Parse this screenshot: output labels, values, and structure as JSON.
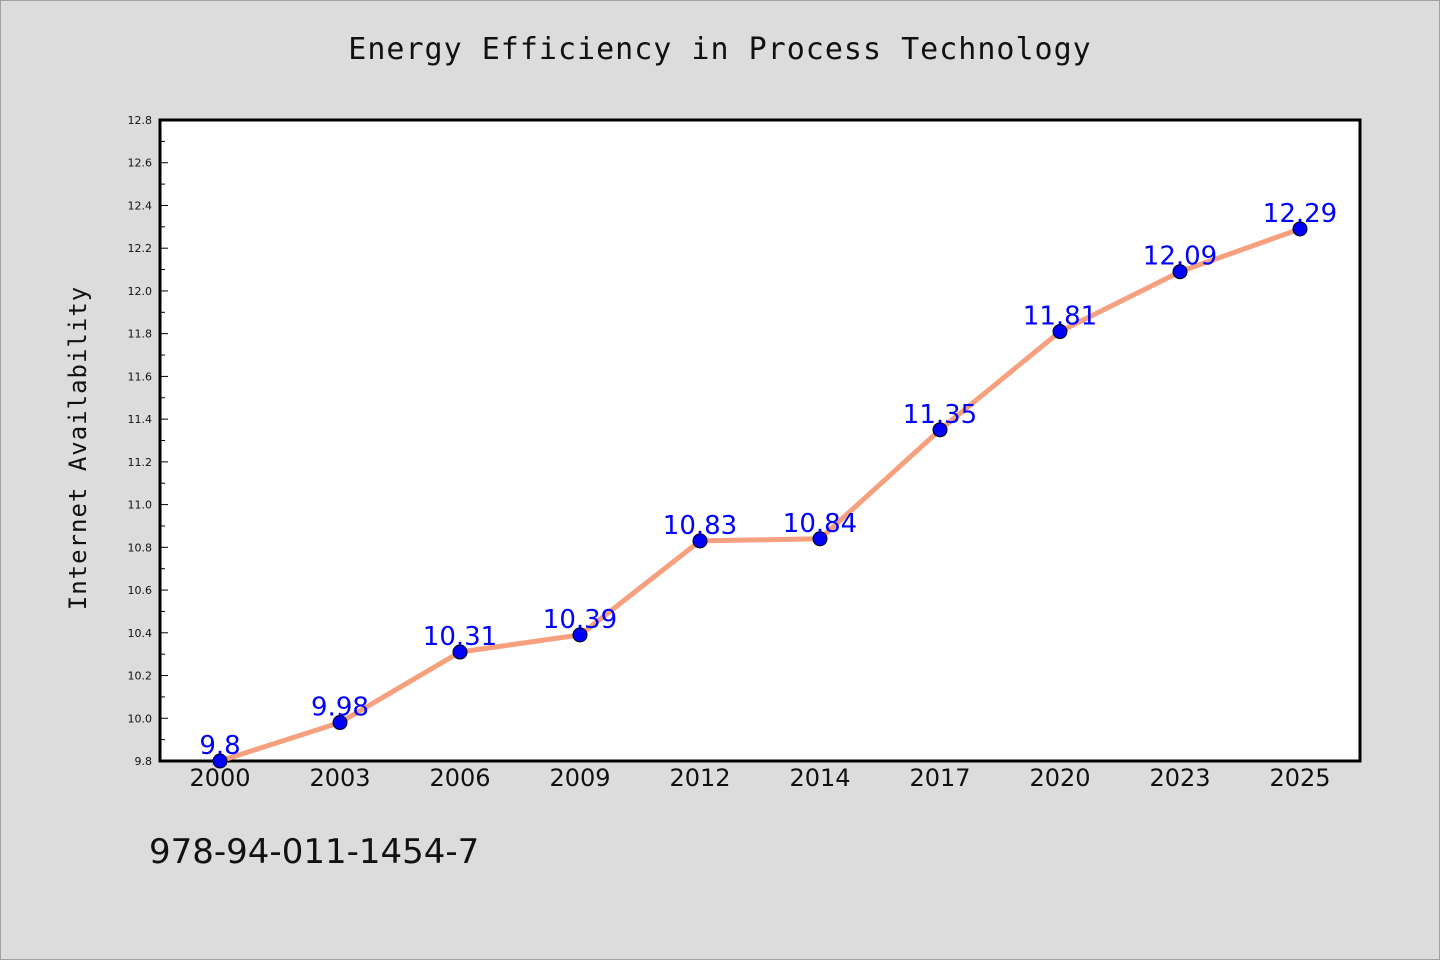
{
  "footer_text": "978-94-011-1454-7",
  "chart_data": {
    "type": "line",
    "title": "Energy Efficiency in Process Technology",
    "xlabel": "",
    "ylabel": "Internet Availability",
    "categories": [
      "2000",
      "2003",
      "2006",
      "2009",
      "2012",
      "2014",
      "2017",
      "2020",
      "2023",
      "2025"
    ],
    "series": [
      {
        "values": [
          9.8,
          9.98,
          10.31,
          10.39,
          10.83,
          10.84,
          11.35,
          11.81,
          12.09,
          12.29
        ],
        "line_color": "#f7a07e",
        "marker_color": "#0000ff"
      }
    ],
    "data_labels": [
      "9.8",
      "9.98",
      "10.31",
      "10.39",
      "10.83",
      "10.84",
      "11.35",
      "11.81",
      "12.09",
      "12.29"
    ],
    "ylim": [
      9.8,
      12.8
    ],
    "yticks": [
      "9.8",
      "10.0",
      "10.2",
      "10.4",
      "10.6",
      "10.8",
      "11.0",
      "11.2",
      "11.4",
      "11.6",
      "11.8",
      "12.0",
      "12.2",
      "12.4",
      "12.6",
      "12.8"
    ],
    "grid": false,
    "legend": "none"
  }
}
